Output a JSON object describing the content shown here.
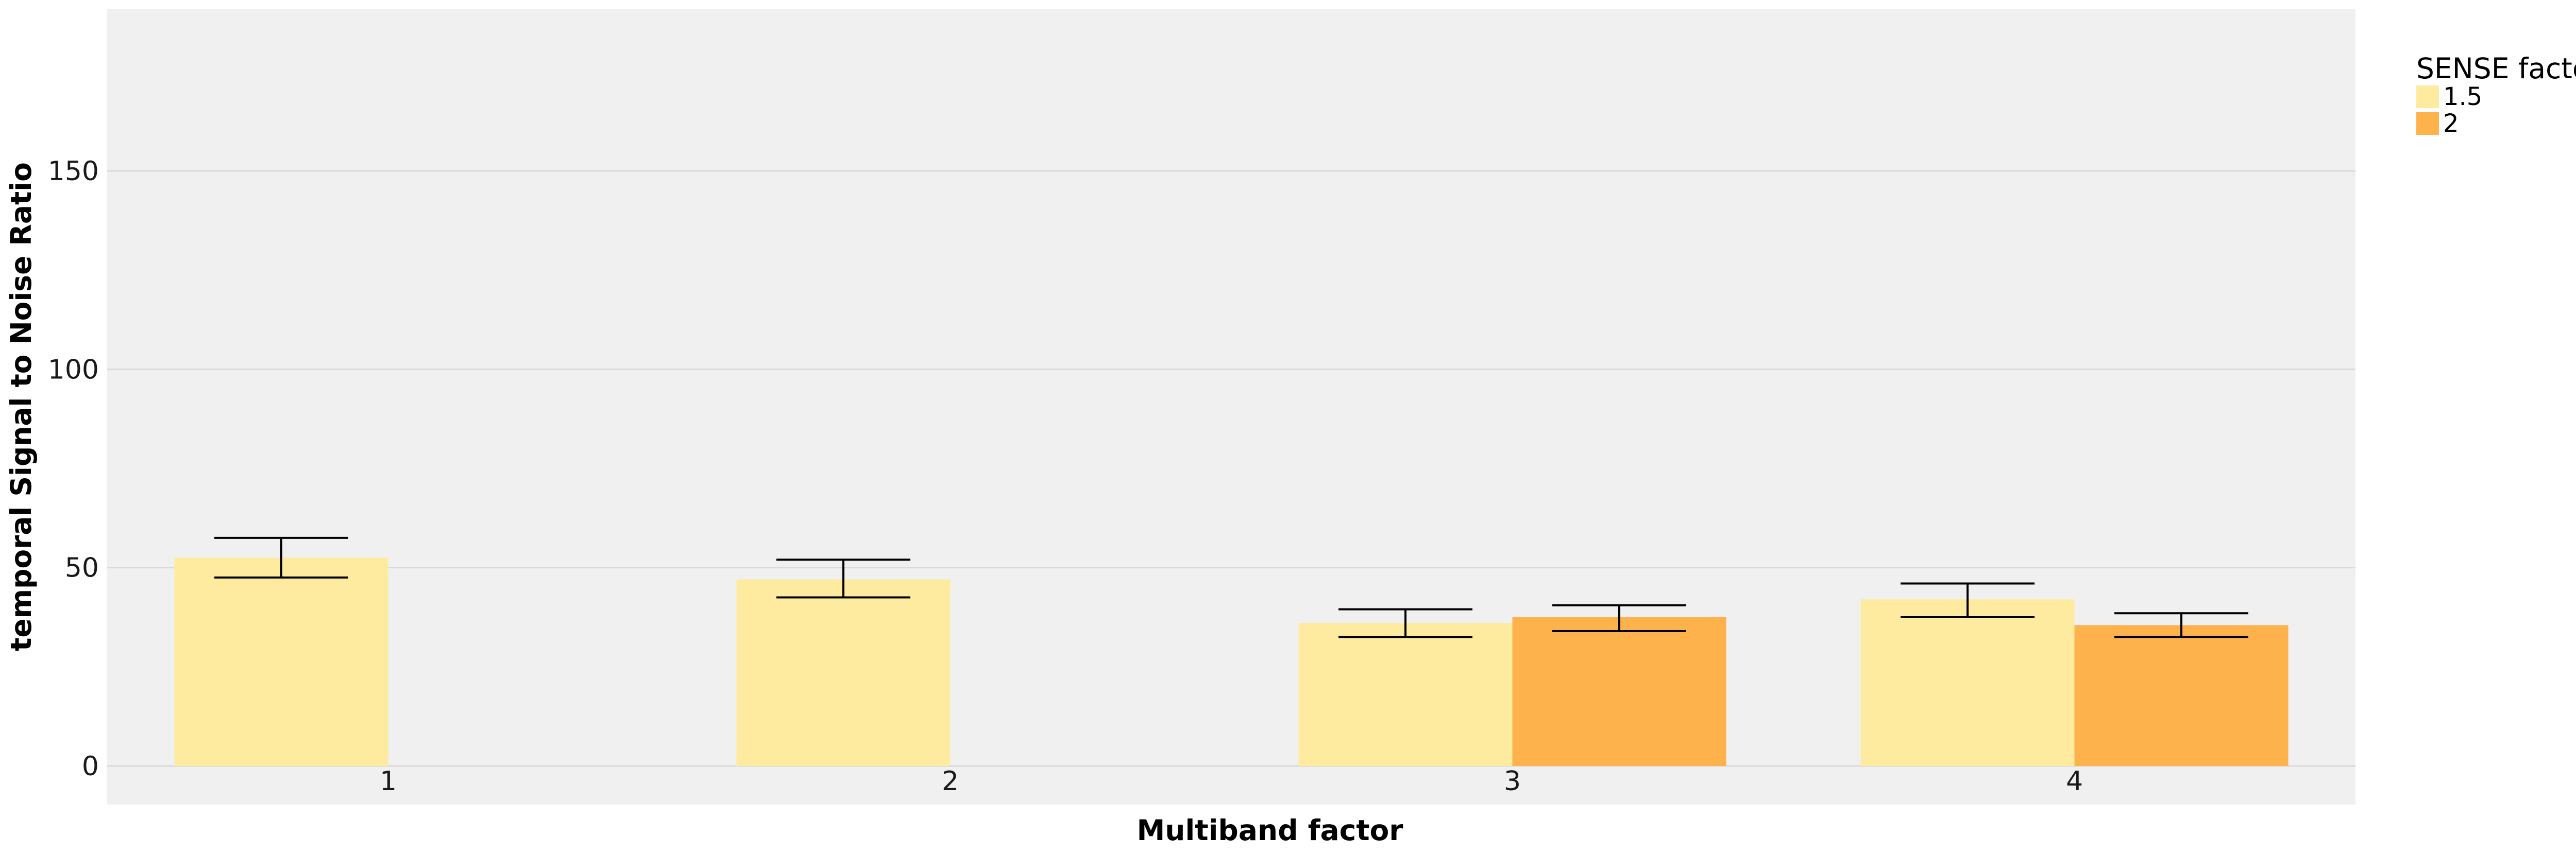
{
  "chart_data": {
    "type": "bar",
    "title": "",
    "xlabel": "Multiband factor",
    "ylabel": "temporal Signal to Noise Ratio",
    "categories": [
      "1",
      "2",
      "3",
      "4"
    ],
    "ylim": [
      0,
      190
    ],
    "yticks": [
      0,
      50,
      100,
      150
    ],
    "grid": true,
    "legend": {
      "title": "SENSE factor",
      "placement": "top-right, outside plot"
    },
    "series": [
      {
        "name": "1.5",
        "color": "#FEEBA0",
        "values": [
          52.5,
          47,
          36,
          42
        ],
        "error_low": [
          47.5,
          42.5,
          32.5,
          37.5
        ],
        "error_high": [
          57.5,
          52,
          39.5,
          46
        ]
      },
      {
        "name": "2",
        "color": "#FEB24C",
        "values": [
          null,
          null,
          37.5,
          35.5
        ],
        "error_low": [
          null,
          null,
          34,
          32.5
        ],
        "error_high": [
          null,
          null,
          40.5,
          38.5
        ]
      }
    ],
    "panel_background": "#F0F0F0",
    "gridline_color": "#D9D9D9"
  }
}
